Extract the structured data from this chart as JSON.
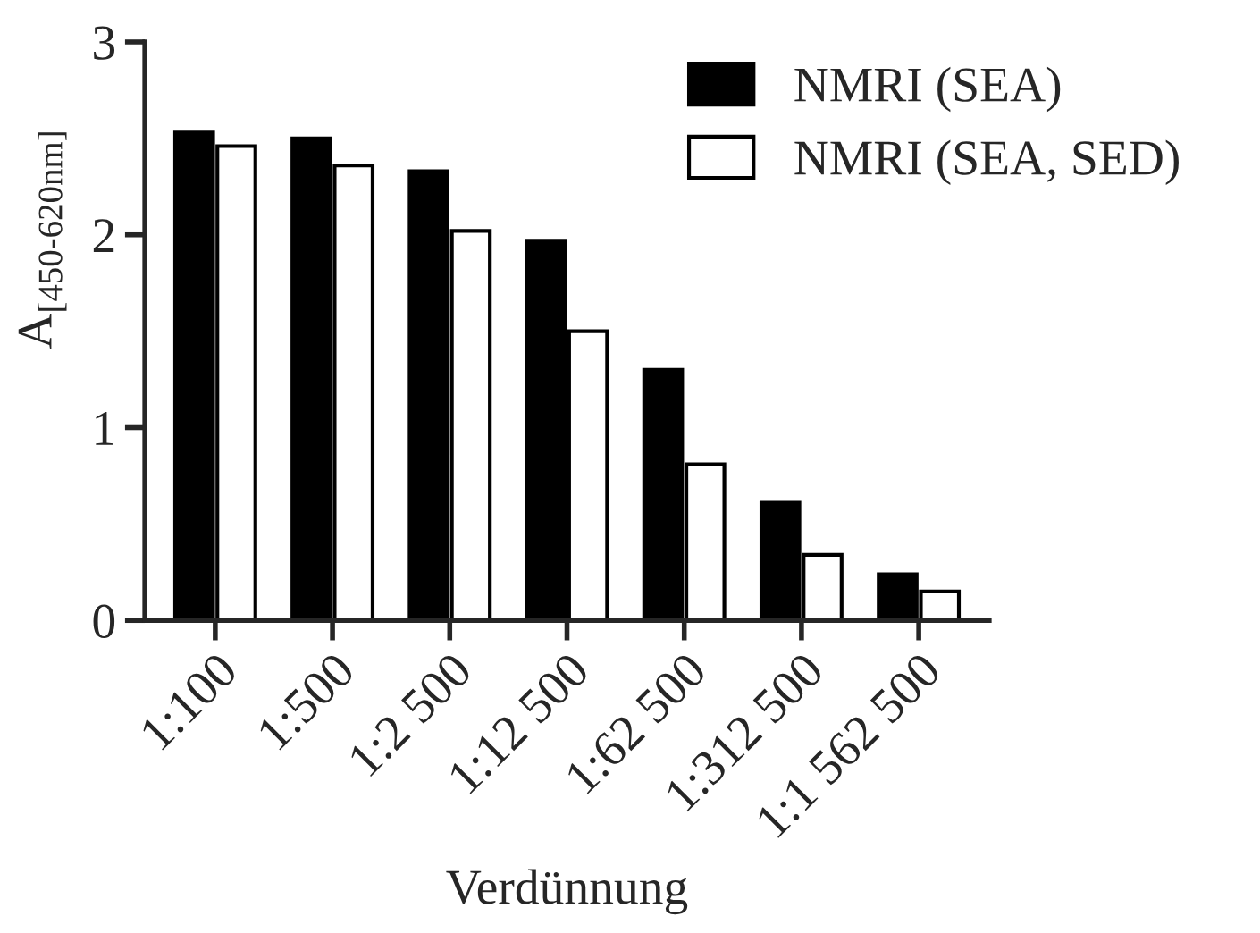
{
  "chart_data": {
    "type": "bar",
    "xlabel": "Verdünnung",
    "ylabel": "A$_{[450-620nm]}$",
    "categories": [
      "1:100",
      "1:500",
      "1:2 500",
      "1:12 500",
      "1:62 500",
      "1:312 500",
      "1:1 562 500"
    ],
    "series": [
      {
        "name": "NMRI (SEA)",
        "color": "#000000",
        "values": [
          2.53,
          2.5,
          2.33,
          1.97,
          1.3,
          0.61,
          0.24
        ]
      },
      {
        "name": "NMRI (SEA, SED)",
        "color": "#ffffff",
        "values": [
          2.46,
          2.36,
          2.02,
          1.5,
          0.81,
          0.34,
          0.15
        ]
      }
    ],
    "ylim": [
      0,
      3
    ],
    "yticks": [
      0,
      1,
      2,
      3
    ],
    "grid": false,
    "legend": "top right"
  }
}
